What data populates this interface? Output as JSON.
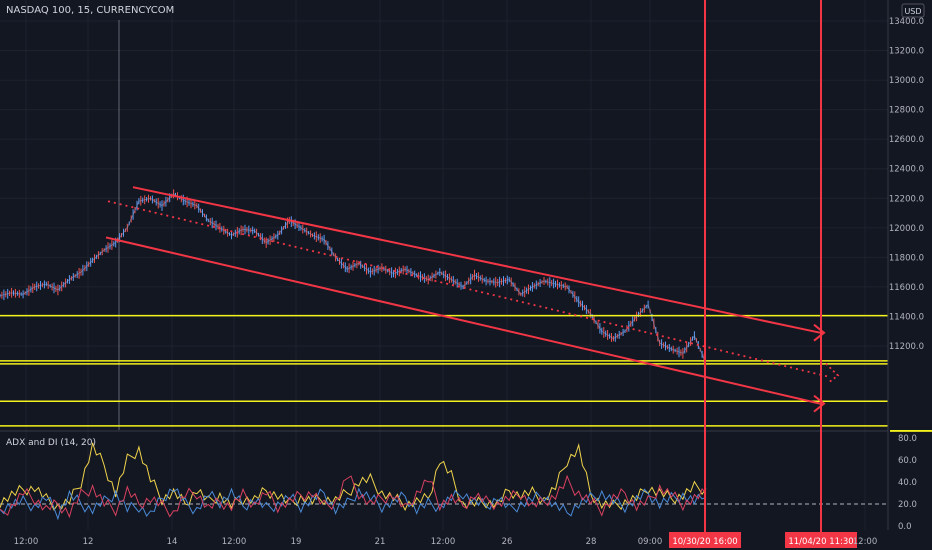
{
  "header": {
    "symbol_title": "NASDAQ 100, 15, CURRENCYCOM",
    "currency": "USD"
  },
  "indicator": {
    "title": "ADX and DI (14, 20)"
  },
  "colors": {
    "background": "#131722",
    "red": "#f23645",
    "yellow": "#f5f31c",
    "candle_up": "#5b9cf6",
    "candle_down": "#ef5350",
    "adx": "#f0d34b",
    "di_plus": "#4a8ad8",
    "di_minus": "#d8415f"
  },
  "chart_data": [
    {
      "type": "line",
      "title": "NASDAQ 100, 15, CURRENCYCOM",
      "ylabel": "USD",
      "ylim": [
        10600,
        13500
      ],
      "y_ticks": [
        "13400.0",
        "13200.0",
        "13000.0",
        "12800.0",
        "12600.0",
        "12400.0",
        "12200.0",
        "12000.0",
        "11800.0",
        "11600.0",
        "11400.0",
        "11200.0"
      ],
      "x_ticks": [
        "12:00",
        "12",
        "14",
        "12:00",
        "19",
        "21",
        "12:00",
        "26",
        "28",
        "09:00",
        "12:00"
      ],
      "series": [
        {
          "values": [
            11540,
            11560,
            11550,
            11600,
            11620,
            11580,
            11650,
            11700,
            11780,
            11850,
            11900,
            12000,
            12180,
            12200,
            12150,
            12230,
            12180,
            12150,
            12050,
            12000,
            11950,
            11990,
            11980,
            11900,
            11950,
            12050,
            12000,
            11950,
            11920,
            11800,
            11720,
            11760,
            11700,
            11730,
            11690,
            11720,
            11680,
            11650,
            11700,
            11650,
            11600,
            11680,
            11640,
            11630,
            11650,
            11550,
            11600,
            11640,
            11620,
            11600,
            11500,
            11420,
            11300,
            11250,
            11300,
            11400,
            11480,
            11220,
            11180,
            11150,
            11270,
            11080
          ]
        }
      ],
      "price_labels": [
        "11405.2",
        "11099.5",
        "11079.2",
        "10825.8",
        "10659.5"
      ],
      "levels": [
        11405.2,
        11099.5,
        11079.2,
        10825.8,
        10659.5
      ],
      "channel": {
        "upper": [
          [
            12275,
            11290
          ]
        ],
        "lower": [
          [
            11935,
            10810
          ]
        ],
        "midline": [
          12180,
          10990
        ]
      },
      "vertical_markers": [
        "10/30/20  16:00",
        "11/04/20  11:30"
      ]
    },
    {
      "type": "line",
      "title": "ADX and DI (14, 20)",
      "ylim": [
        0,
        80
      ],
      "y_ticks": [
        "80.0",
        "60.0",
        "40.0",
        "20.0",
        "0.0"
      ],
      "threshold": 20,
      "series": [
        {
          "values": [
            22,
            28,
            33,
            35,
            24,
            18,
            22,
            40,
            72,
            55,
            30,
            60,
            70,
            42,
            25,
            30,
            20,
            33,
            22,
            28,
            18,
            25,
            24,
            32,
            28,
            20,
            26,
            22,
            25,
            23,
            30,
            40,
            42,
            30,
            25,
            20,
            22,
            25,
            60,
            45,
            20,
            20,
            22,
            20,
            32,
            28,
            30,
            24,
            35,
            60,
            70,
            30,
            20,
            18,
            22,
            25,
            35,
            30,
            25,
            28,
            35,
            34
          ]
        },
        {
          "values": [
            15,
            20,
            22,
            18,
            25,
            12,
            28,
            20,
            15,
            22,
            30,
            15,
            18,
            10,
            25,
            35,
            20,
            15,
            28,
            22,
            30,
            18,
            24,
            16,
            20,
            26,
            18,
            24,
            30,
            15,
            20,
            32,
            25,
            18,
            22,
            27,
            15,
            20,
            18,
            25,
            30,
            22,
            18,
            26,
            15,
            20,
            24,
            28,
            18,
            12,
            20,
            25,
            30,
            22,
            18,
            24,
            30,
            20,
            25,
            28,
            22,
            26
          ]
        },
        {
          "values": [
            10,
            18,
            30,
            25,
            15,
            20,
            12,
            28,
            35,
            20,
            15,
            32,
            20,
            25,
            18,
            12,
            28,
            30,
            16,
            22,
            18,
            28,
            20,
            30,
            18,
            22,
            28,
            30,
            18,
            22,
            45,
            30,
            20,
            25,
            28,
            15,
            30,
            42,
            20,
            25,
            18,
            28,
            22,
            20,
            25,
            30,
            18,
            22,
            28,
            40,
            30,
            22,
            15,
            25,
            30,
            18,
            22,
            35,
            28,
            20,
            25,
            30
          ]
        }
      ]
    }
  ]
}
